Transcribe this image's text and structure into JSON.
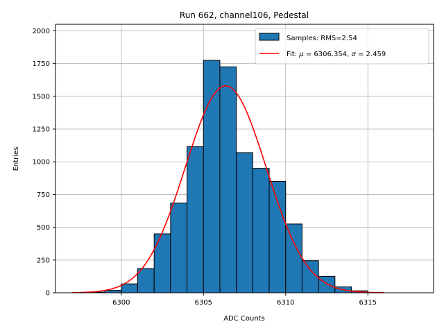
{
  "chart_data": {
    "type": "bar",
    "title": "Run 662, channel106, Pedestal",
    "xlabel": "ADC Counts",
    "ylabel": "Entries",
    "xlim": [
      6296.0,
      6319.0
    ],
    "ylim": [
      0,
      2050
    ],
    "xticks": [
      6300,
      6305,
      6310,
      6315
    ],
    "yticks": [
      0,
      250,
      500,
      750,
      1000,
      1250,
      1500,
      1750,
      2000
    ],
    "grid": true,
    "legend_position": "top-right",
    "histogram": {
      "name": "Samples: RMS=2.54",
      "color": "#1f77b4",
      "edgecolor": "#000000",
      "bin_width": 1,
      "bin_left_edges": [
        6298,
        6299,
        6300,
        6301,
        6302,
        6303,
        6304,
        6305,
        6306,
        6307,
        6308,
        6309,
        6310,
        6311,
        6312,
        6313,
        6314
      ],
      "counts": [
        5,
        18,
        68,
        185,
        450,
        685,
        1115,
        1775,
        1725,
        1070,
        950,
        850,
        525,
        245,
        125,
        45,
        15
      ]
    },
    "fit": {
      "name": "Fit: μ = 6306.354, σ = 2.459",
      "name_parts": [
        "Fit: ",
        "μ",
        " = 6306.354, ",
        "σ",
        " = 2.459"
      ],
      "color": "#ff0000",
      "mu": 6306.354,
      "sigma": 2.459,
      "amplitude": 1580,
      "x_range": [
        6297.0,
        6316.0
      ]
    }
  }
}
